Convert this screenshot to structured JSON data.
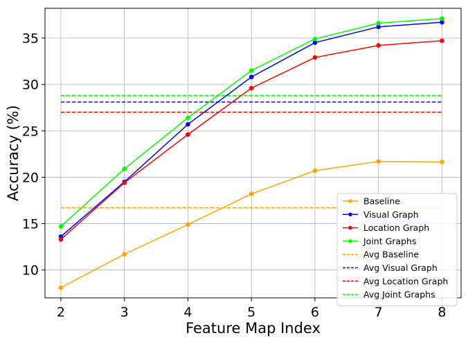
{
  "chart_data": {
    "type": "line",
    "title": "",
    "xlabel": "Feature Map Index",
    "ylabel": "Accuracy (%)",
    "x": [
      2,
      3,
      4,
      5,
      6,
      7,
      8
    ],
    "xlim": [
      1.75,
      8.3
    ],
    "ylim": [
      7.0,
      38.2
    ],
    "xticks": [
      2,
      3,
      4,
      5,
      6,
      7,
      8
    ],
    "yticks": [
      10,
      15,
      20,
      25,
      30,
      35
    ],
    "grid": true,
    "legend_position": "lower-right",
    "series": [
      {
        "name": "Baseline",
        "color": "#ffa500",
        "style": "solid",
        "values": [
          8.1,
          11.7,
          14.9,
          18.2,
          20.7,
          21.7,
          21.65
        ]
      },
      {
        "name": "Visual Graph",
        "color": "#0000ff",
        "style": "solid",
        "values": [
          13.6,
          19.5,
          25.7,
          30.8,
          34.5,
          36.2,
          36.7
        ]
      },
      {
        "name": "Location Graph",
        "color": "#ff0000",
        "style": "solid",
        "values": [
          13.3,
          19.4,
          24.6,
          29.6,
          32.9,
          34.2,
          34.7
        ]
      },
      {
        "name": "Joint Graphs",
        "color": "#00ff00",
        "style": "solid",
        "values": [
          14.7,
          20.9,
          26.4,
          31.5,
          34.9,
          36.6,
          37.1
        ]
      },
      {
        "name": "Avg Baseline",
        "color": "#ffa500",
        "style": "dashed",
        "values": [
          16.7,
          16.7,
          16.7,
          16.7,
          16.7,
          16.7,
          16.7
        ]
      },
      {
        "name": "Avg Visual Graph",
        "color": "#0000ff",
        "style": "dashed",
        "values": [
          28.1,
          28.1,
          28.1,
          28.1,
          28.1,
          28.1,
          28.1
        ]
      },
      {
        "name": "Avg Location Graph",
        "color": "#ff0000",
        "style": "dashed",
        "values": [
          27.0,
          27.0,
          27.0,
          27.0,
          27.0,
          27.0,
          27.0
        ]
      },
      {
        "name": "Avg Joint Graphs",
        "color": "#00ff00",
        "style": "dashed",
        "values": [
          28.8,
          28.8,
          28.8,
          28.8,
          28.8,
          28.8,
          28.8
        ]
      }
    ]
  }
}
